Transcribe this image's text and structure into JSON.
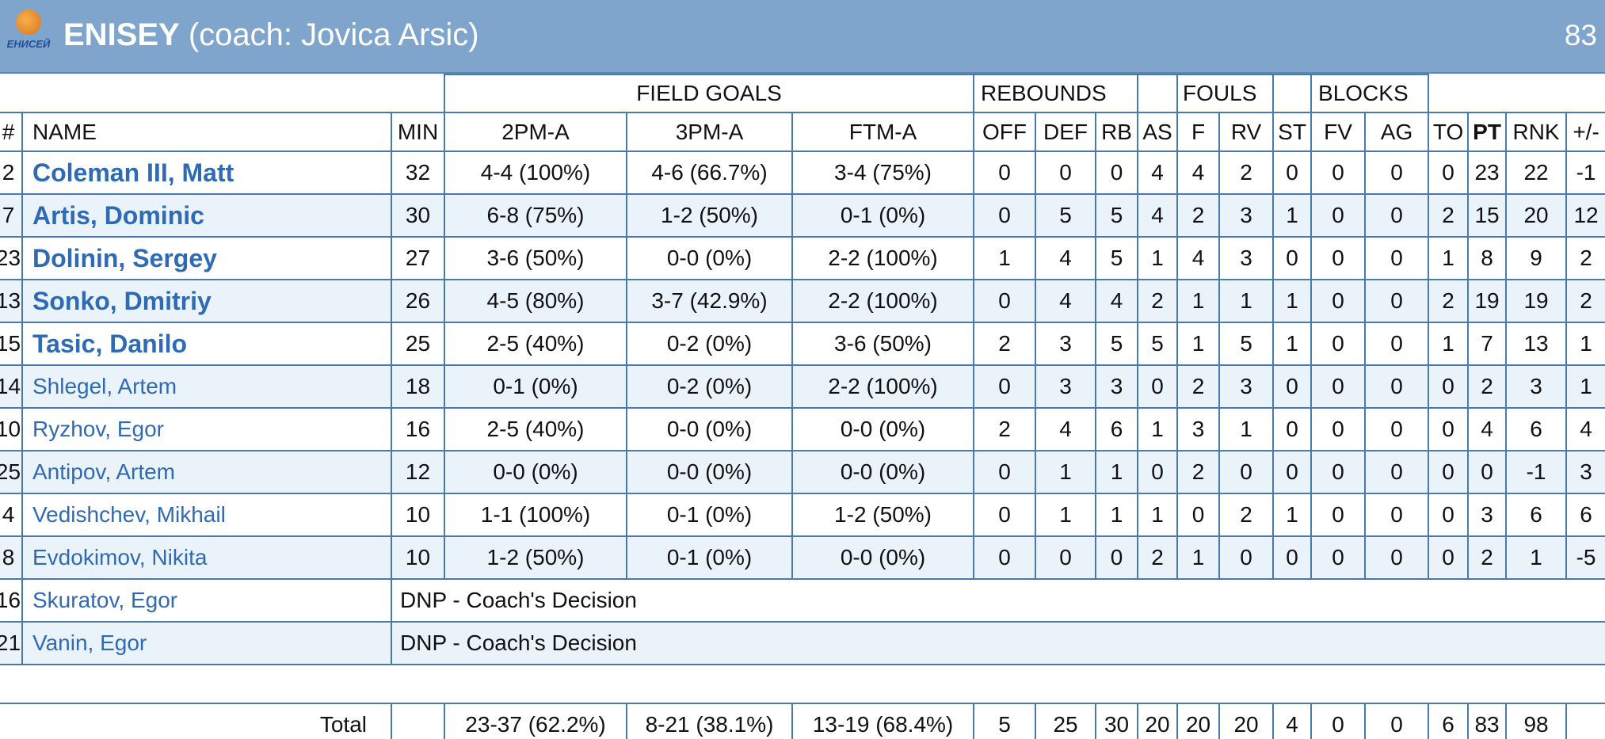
{
  "header": {
    "logo_text": "ЕНИСЕЙ",
    "team": "ENISEY",
    "coach": "(coach: Jovica Arsic)",
    "score": "83"
  },
  "table": {
    "groups": [
      "FIELD GOALS",
      "REBOUNDS",
      "FOULS",
      "BLOCKS"
    ],
    "columns": [
      "#",
      "NAME",
      "MIN",
      "2PM-A",
      "3PM-A",
      "FTM-A",
      "OFF",
      "DEF",
      "RB",
      "AS",
      "F",
      "RV",
      "ST",
      "FV",
      "AG",
      "TO",
      "PT",
      "RNK",
      "+/-"
    ],
    "rows": [
      {
        "number": "2",
        "name": "Coleman III, Matt",
        "starter": true,
        "stats": [
          "32",
          "4-4 (100%)",
          "4-6 (66.7%)",
          "3-4 (75%)",
          "0",
          "0",
          "0",
          "4",
          "4",
          "2",
          "0",
          "0",
          "0",
          "0",
          "23",
          "22",
          "-1"
        ]
      },
      {
        "number": "7",
        "name": "Artis, Dominic",
        "starter": true,
        "stats": [
          "30",
          "6-8 (75%)",
          "1-2 (50%)",
          "0-1 (0%)",
          "0",
          "5",
          "5",
          "4",
          "2",
          "3",
          "1",
          "0",
          "0",
          "2",
          "15",
          "20",
          "12"
        ]
      },
      {
        "number": "23",
        "name": "Dolinin, Sergey",
        "starter": true,
        "stats": [
          "27",
          "3-6 (50%)",
          "0-0 (0%)",
          "2-2 (100%)",
          "1",
          "4",
          "5",
          "1",
          "4",
          "3",
          "0",
          "0",
          "0",
          "1",
          "8",
          "9",
          "2"
        ]
      },
      {
        "number": "13",
        "name": "Sonko, Dmitriy",
        "starter": true,
        "stats": [
          "26",
          "4-5 (80%)",
          "3-7 (42.9%)",
          "2-2 (100%)",
          "0",
          "4",
          "4",
          "2",
          "1",
          "1",
          "1",
          "0",
          "0",
          "2",
          "19",
          "19",
          "2"
        ]
      },
      {
        "number": "15",
        "name": "Tasic, Danilo",
        "starter": true,
        "stats": [
          "25",
          "2-5 (40%)",
          "0-2 (0%)",
          "3-6 (50%)",
          "2",
          "3",
          "5",
          "5",
          "1",
          "5",
          "1",
          "0",
          "0",
          "1",
          "7",
          "13",
          "1"
        ]
      },
      {
        "number": "14",
        "name": "Shlegel, Artem",
        "starter": false,
        "stats": [
          "18",
          "0-1 (0%)",
          "0-2 (0%)",
          "2-2 (100%)",
          "0",
          "3",
          "3",
          "0",
          "2",
          "3",
          "0",
          "0",
          "0",
          "0",
          "2",
          "3",
          "1"
        ]
      },
      {
        "number": "10",
        "name": "Ryzhov, Egor",
        "starter": false,
        "stats": [
          "16",
          "2-5 (40%)",
          "0-0 (0%)",
          "0-0 (0%)",
          "2",
          "4",
          "6",
          "1",
          "3",
          "1",
          "0",
          "0",
          "0",
          "0",
          "4",
          "6",
          "4"
        ]
      },
      {
        "number": "25",
        "name": "Antipov, Artem",
        "starter": false,
        "stats": [
          "12",
          "0-0 (0%)",
          "0-0 (0%)",
          "0-0 (0%)",
          "0",
          "1",
          "1",
          "0",
          "2",
          "0",
          "0",
          "0",
          "0",
          "0",
          "0",
          "-1",
          "3"
        ]
      },
      {
        "number": "4",
        "name": "Vedishchev, Mikhail",
        "starter": false,
        "stats": [
          "10",
          "1-1 (100%)",
          "0-1 (0%)",
          "1-2 (50%)",
          "0",
          "1",
          "1",
          "1",
          "0",
          "2",
          "1",
          "0",
          "0",
          "0",
          "3",
          "6",
          "6"
        ]
      },
      {
        "number": "8",
        "name": "Evdokimov, Nikita",
        "starter": false,
        "stats": [
          "10",
          "1-2 (50%)",
          "0-1 (0%)",
          "0-0 (0%)",
          "0",
          "0",
          "0",
          "2",
          "1",
          "0",
          "0",
          "0",
          "0",
          "0",
          "2",
          "1",
          "-5"
        ]
      },
      {
        "number": "16",
        "name": "Skuratov, Egor",
        "starter": false,
        "note": "DNP - Coach's Decision"
      },
      {
        "number": "21",
        "name": "Vanin, Egor",
        "starter": false,
        "note": "DNP - Coach's Decision"
      }
    ],
    "total": {
      "label": "Total",
      "stats": [
        "23-37 (62.2%)",
        "8-21 (38.1%)",
        "13-19 (68.4%)",
        "5",
        "25",
        "30",
        "20",
        "20",
        "20",
        "4",
        "0",
        "0",
        "6",
        "83",
        "98"
      ]
    }
  }
}
